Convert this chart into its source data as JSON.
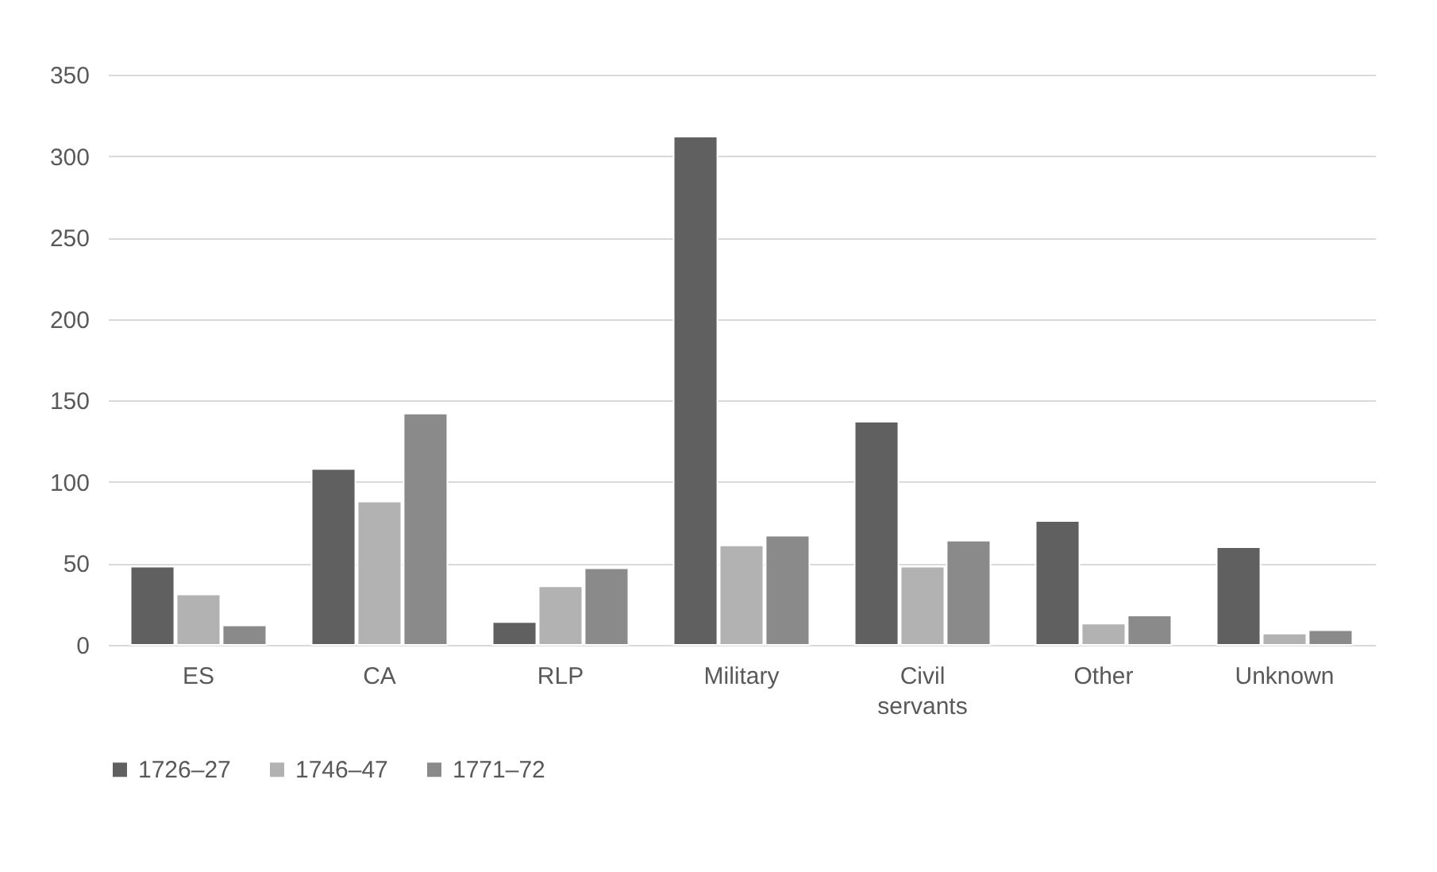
{
  "chart_data": {
    "type": "bar",
    "categories": [
      "ES",
      "CA",
      "RLP",
      "Military",
      "Civil servants",
      "Other",
      "Unknown"
    ],
    "series": [
      {
        "name": "1726–27",
        "color": "#606060",
        "values": [
          48,
          108,
          14,
          312,
          137,
          76,
          60
        ]
      },
      {
        "name": "1746–47",
        "color": "#b2b2b2",
        "values": [
          31,
          88,
          36,
          61,
          48,
          13,
          7
        ]
      },
      {
        "name": "1771–72",
        "color": "#8a8a8a",
        "values": [
          12,
          142,
          47,
          67,
          64,
          18,
          9
        ]
      }
    ],
    "ylim": [
      0,
      350
    ],
    "yticks": [
      0,
      50,
      100,
      150,
      200,
      250,
      300,
      350
    ],
    "grid": "y",
    "legend": "bottom"
  }
}
